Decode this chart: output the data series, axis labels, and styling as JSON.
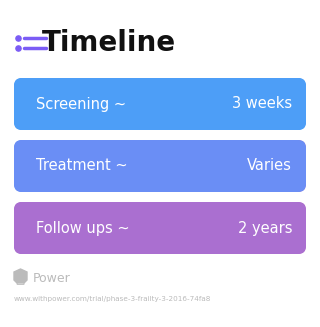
{
  "title": "Timeline",
  "background_color": "#ffffff",
  "title_fontsize": 20,
  "title_color": "#111111",
  "icon_color": "#7b5cf5",
  "rows": [
    {
      "label": "Screening ~",
      "value": "3 weeks",
      "gradient_left": "#4d9ef7",
      "gradient_right": "#4d9ef7"
    },
    {
      "label": "Treatment ~",
      "value": "Varies",
      "gradient_left": "#6a8ef5",
      "gradient_right": "#b07ad0"
    },
    {
      "label": "Follow ups ~",
      "value": "2 years",
      "gradient_left": "#aa6fd0",
      "gradient_right": "#c87ccc"
    }
  ],
  "row_text_color": "#ffffff",
  "row_label_fontsize": 10.5,
  "row_value_fontsize": 10.5,
  "watermark_text": "Power",
  "watermark_color": "#bbbbbb",
  "url_text": "www.withpower.com/trial/phase-3-frailty-3-2016-74fa8",
  "url_color": "#bbbbbb",
  "url_fontsize": 5.2
}
